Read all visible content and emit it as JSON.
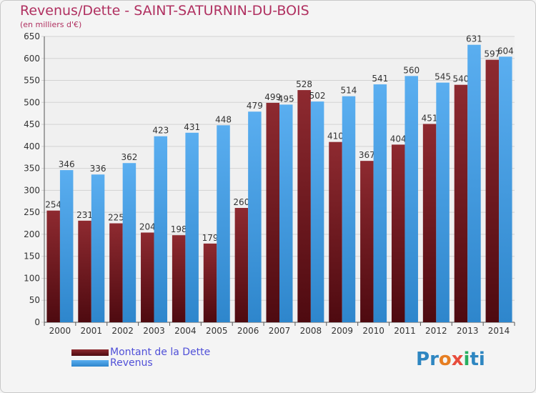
{
  "colors": {
    "dette": "#7a1f24",
    "revenus": "#3d9be0",
    "title": "#b03060",
    "legend_text": "#5050d8"
  },
  "logo": {
    "text": "Proxiti",
    "letters": [
      "P",
      "r",
      "o",
      "x",
      "i",
      "t",
      "i"
    ],
    "letter_colors": [
      "#2e86c1",
      "#2e86c1",
      "#e67e22",
      "#e74c3c",
      "#27ae60",
      "#2e86c1",
      "#2e86c1"
    ]
  },
  "chart_data": {
    "type": "bar",
    "title": "Revenus/Dette - SAINT-SATURNIN-DU-BOIS",
    "subtitle": "(en milliers d'€)",
    "categories": [
      "2000",
      "2001",
      "2002",
      "2003",
      "2004",
      "2005",
      "2006",
      "2007",
      "2008",
      "2009",
      "2010",
      "2011",
      "2012",
      "2013",
      "2014"
    ],
    "series": [
      {
        "name": "Montant de la Dette",
        "values": [
          254,
          231,
          225,
          204,
          198,
          179,
          260,
          499,
          528,
          410,
          367,
          404,
          451,
          540,
          597
        ]
      },
      {
        "name": "Revenus",
        "values": [
          346,
          336,
          362,
          423,
          431,
          448,
          479,
          495,
          502,
          514,
          541,
          560,
          545,
          631,
          604
        ]
      }
    ],
    "ylim": [
      0,
      650
    ],
    "yticks": [
      0,
      50,
      100,
      150,
      200,
      250,
      300,
      350,
      400,
      450,
      500,
      550,
      600,
      650
    ],
    "grid": true,
    "legend_position": "bottom-left"
  }
}
